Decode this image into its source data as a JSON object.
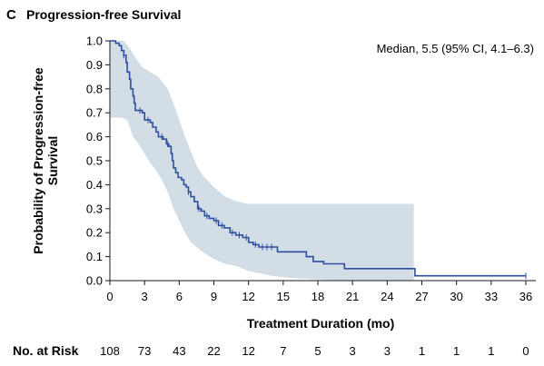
{
  "panel_label": "C",
  "chart_data": {
    "type": "line",
    "subtype": "kaplan-meier",
    "title": "Progression-free Survival",
    "xlabel": "Treatment Duration (mo)",
    "ylabel": "Probability of Progression-free Survival",
    "ylabel_lines": [
      "Probability of Progression-free",
      "Survival"
    ],
    "annotation": "Median, 5.5 (95% CI, 4.1–6.3)",
    "xlim": [
      0,
      36
    ],
    "ylim": [
      0,
      1.0
    ],
    "xticks": [
      0,
      3,
      6,
      9,
      12,
      15,
      18,
      21,
      24,
      27,
      30,
      33,
      36
    ],
    "yticks": [
      0.0,
      0.1,
      0.2,
      0.3,
      0.4,
      0.5,
      0.6,
      0.7,
      0.8,
      0.9,
      1.0
    ],
    "ytick_labels": [
      "0.0",
      "0.1",
      "0.2",
      "0.3",
      "0.4",
      "0.5",
      "0.6",
      "0.7",
      "0.8",
      "0.9",
      "1.0"
    ],
    "colors": {
      "curve": "#2e4fa0",
      "ci_band": "#d3dde6",
      "axis": "#1a1a1a"
    },
    "series": [
      {
        "kind": "step",
        "points": [
          [
            0,
            1.0
          ],
          [
            0.3,
            1.0
          ],
          [
            0.5,
            0.99
          ],
          [
            0.8,
            0.98
          ],
          [
            1.0,
            0.96
          ],
          [
            1.2,
            0.94
          ],
          [
            1.4,
            0.91
          ],
          [
            1.5,
            0.87
          ],
          [
            1.7,
            0.84
          ],
          [
            1.8,
            0.8
          ],
          [
            2.0,
            0.77
          ],
          [
            2.1,
            0.74
          ],
          [
            2.2,
            0.71
          ],
          [
            2.8,
            0.7
          ],
          [
            3.0,
            0.67
          ],
          [
            3.5,
            0.66
          ],
          [
            3.7,
            0.64
          ],
          [
            4.0,
            0.62
          ],
          [
            4.2,
            0.6
          ],
          [
            4.6,
            0.59
          ],
          [
            4.9,
            0.57
          ],
          [
            5.1,
            0.56
          ],
          [
            5.3,
            0.53
          ],
          [
            5.4,
            0.5
          ],
          [
            5.5,
            0.47
          ],
          [
            5.7,
            0.45
          ],
          [
            5.9,
            0.43
          ],
          [
            6.2,
            0.42
          ],
          [
            6.4,
            0.4
          ],
          [
            6.6,
            0.39
          ],
          [
            6.8,
            0.37
          ],
          [
            7.0,
            0.35
          ],
          [
            7.3,
            0.33
          ],
          [
            7.6,
            0.3
          ],
          [
            7.9,
            0.29
          ],
          [
            8.2,
            0.27
          ],
          [
            8.6,
            0.26
          ],
          [
            9.0,
            0.25
          ],
          [
            9.4,
            0.23
          ],
          [
            9.9,
            0.22
          ],
          [
            10.4,
            0.2
          ],
          [
            10.9,
            0.19
          ],
          [
            11.5,
            0.18
          ],
          [
            12.0,
            0.16
          ],
          [
            12.4,
            0.15
          ],
          [
            12.9,
            0.14
          ],
          [
            14.5,
            0.12
          ],
          [
            17.0,
            0.1
          ],
          [
            17.6,
            0.08
          ],
          [
            18.5,
            0.07
          ],
          [
            20.3,
            0.05
          ],
          [
            26.3,
            0.05
          ],
          [
            26.4,
            0.02
          ],
          [
            36,
            0.02
          ]
        ]
      }
    ],
    "ci_band": {
      "upper": [
        [
          0,
          1.0
        ],
        [
          1.2,
          1.0
        ],
        [
          1.7,
          0.97
        ],
        [
          2.2,
          0.93
        ],
        [
          2.8,
          0.89
        ],
        [
          3.5,
          0.87
        ],
        [
          4.2,
          0.85
        ],
        [
          5.0,
          0.8
        ],
        [
          5.5,
          0.74
        ],
        [
          6.0,
          0.67
        ],
        [
          6.5,
          0.6
        ],
        [
          7.0,
          0.54
        ],
        [
          7.5,
          0.48
        ],
        [
          8.0,
          0.44
        ],
        [
          9.0,
          0.39
        ],
        [
          10.0,
          0.35
        ],
        [
          11.0,
          0.33
        ],
        [
          12.0,
          0.32
        ],
        [
          26.3,
          0.32
        ]
      ],
      "lower": [
        [
          0,
          0.68
        ],
        [
          1.0,
          0.68
        ],
        [
          1.5,
          0.67
        ],
        [
          2.0,
          0.6
        ],
        [
          2.5,
          0.57
        ],
        [
          3.0,
          0.53
        ],
        [
          3.5,
          0.49
        ],
        [
          4.0,
          0.46
        ],
        [
          4.5,
          0.42
        ],
        [
          5.0,
          0.37
        ],
        [
          5.5,
          0.3
        ],
        [
          6.0,
          0.25
        ],
        [
          6.5,
          0.2
        ],
        [
          7.0,
          0.16
        ],
        [
          8.0,
          0.12
        ],
        [
          9.0,
          0.09
        ],
        [
          10.0,
          0.07
        ],
        [
          11.0,
          0.06
        ],
        [
          12.0,
          0.04
        ],
        [
          14.0,
          0.02
        ],
        [
          16.0,
          0.01
        ],
        [
          18.0,
          0.005
        ],
        [
          20.0,
          0.0
        ],
        [
          26.3,
          0.0
        ]
      ]
    },
    "censor_marks": [
      [
        1.2,
        0.94
      ],
      [
        2.6,
        0.71
      ],
      [
        3.3,
        0.67
      ],
      [
        4.5,
        0.6
      ],
      [
        5.0,
        0.57
      ],
      [
        6.8,
        0.37
      ],
      [
        7.7,
        0.3
      ],
      [
        8.4,
        0.27
      ],
      [
        9.2,
        0.25
      ],
      [
        9.7,
        0.23
      ],
      [
        10.6,
        0.2
      ],
      [
        11.2,
        0.19
      ],
      [
        11.8,
        0.18
      ],
      [
        12.6,
        0.15
      ],
      [
        13.2,
        0.14
      ],
      [
        13.6,
        0.14
      ],
      [
        14.0,
        0.14
      ],
      [
        36,
        0.02
      ]
    ],
    "at_risk": {
      "label": "No. at Risk",
      "times": [
        0,
        3,
        6,
        9,
        12,
        15,
        18,
        21,
        24,
        27,
        30,
        33,
        36
      ],
      "values": [
        "108",
        "73",
        "43",
        "22",
        "12",
        "7",
        "5",
        "3",
        "3",
        "1",
        "1",
        "1",
        "0"
      ]
    }
  }
}
